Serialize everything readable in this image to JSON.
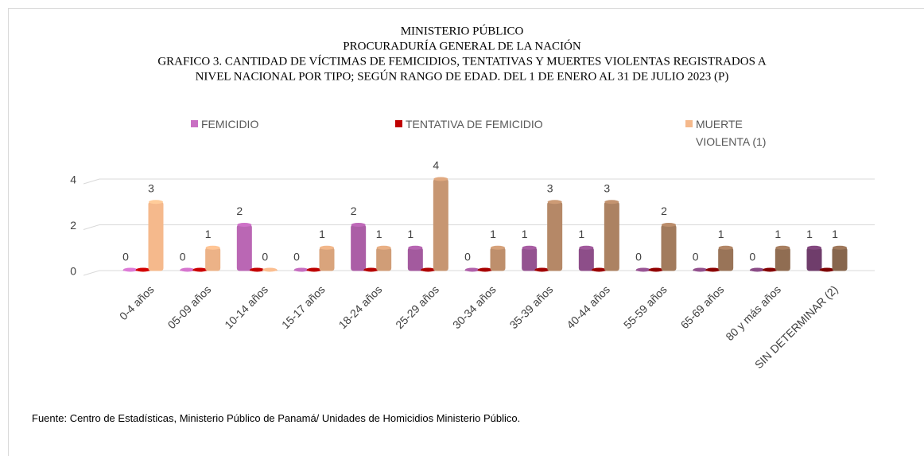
{
  "chart_data": {
    "type": "bar3d",
    "title": [
      "MINISTERIO PÚBLICO",
      "PROCURADURÍA GENERAL DE LA NACIÓN",
      "GRAFICO 3. CANTIDAD DE VÍCTIMAS DE FEMICIDIOS, TENTATIVAS Y MUERTES VIOLENTAS REGISTRADOS A",
      "NIVEL NACIONAL POR TIPO; SEGÚN RANGO DE EDAD. DEL 1 DE ENERO AL 31 DE  JULIO 2023  (P)"
    ],
    "categories": [
      "0-4 años",
      "05-09  años",
      "10-14  años",
      "15-17  años",
      "18-24  años",
      "25-29  años",
      "30-34  años",
      "35-39  años",
      "40-44  años",
      "55-59  años",
      "65-69  años",
      "80 y más años",
      "SIN DETERMINAR (2)"
    ],
    "series": [
      {
        "name": "FEMICIDIO",
        "color": "#c96fc3",
        "show_labels": true,
        "values": [
          0,
          0,
          2,
          0,
          2,
          1,
          0,
          1,
          1,
          0,
          0,
          0,
          1
        ]
      },
      {
        "name": "TENTATIVA DE FEMICIDIO",
        "color": "#c00000",
        "show_labels": false,
        "values": [
          0,
          0,
          0,
          0,
          0,
          0,
          0,
          0,
          0,
          0,
          0,
          0,
          0
        ]
      },
      {
        "name": "MUERTE VIOLENTA (1)",
        "color": "#f5b98c",
        "show_labels": true,
        "values": [
          3,
          1,
          0,
          1,
          1,
          4,
          1,
          3,
          3,
          2,
          1,
          1,
          1
        ]
      }
    ],
    "ylim": [
      0,
      4
    ],
    "yticks": [
      0,
      2,
      4
    ],
    "grid": true,
    "note": "Fuente: Centro de Estadísticas, Ministerio Público de Panamá/ Unidades de Homicidios Ministerio Público."
  }
}
